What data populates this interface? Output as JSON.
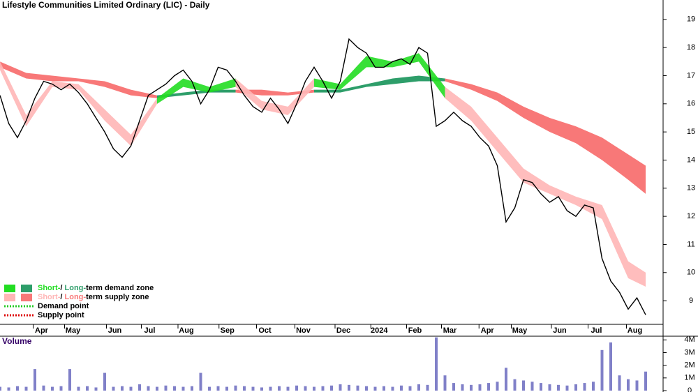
{
  "chart_data": [
    {
      "type": "line",
      "title": "Lifestyle Communities Limited Ordinary (LIC) - Daily",
      "x": [
        0,
        1,
        2,
        3,
        4,
        5,
        6,
        7,
        8,
        9,
        10,
        11,
        12,
        13,
        14,
        15,
        16,
        17,
        18,
        19,
        20,
        21,
        22,
        23,
        24,
        25,
        26,
        27,
        28,
        29,
        30,
        31,
        32,
        33,
        34,
        35,
        36,
        37,
        38,
        39,
        40,
        41,
        42,
        43,
        44,
        45,
        46,
        47,
        48,
        49,
        50,
        51,
        52,
        53,
        54,
        55,
        56,
        57,
        58,
        59,
        60,
        61,
        62,
        63,
        64,
        65,
        66,
        67,
        68,
        69,
        70,
        71,
        72,
        73,
        74
      ],
      "values": [
        16.3,
        15.3,
        14.8,
        15.4,
        16.2,
        16.8,
        16.7,
        16.5,
        16.7,
        16.4,
        16.0,
        15.5,
        15.0,
        14.4,
        14.1,
        14.5,
        15.4,
        16.3,
        16.5,
        16.7,
        17.0,
        17.2,
        16.8,
        16.0,
        16.5,
        17.3,
        17.2,
        16.8,
        16.3,
        15.9,
        15.7,
        16.2,
        15.8,
        15.3,
        16.0,
        16.8,
        17.3,
        16.8,
        16.2,
        16.8,
        18.3,
        18.0,
        17.8,
        17.3,
        17.3,
        17.5,
        17.6,
        17.4,
        18.0,
        17.8,
        15.2,
        15.4,
        15.7,
        15.4,
        15.2,
        14.8,
        14.5,
        13.8,
        11.8,
        12.3,
        13.3,
        13.2,
        12.8,
        12.5,
        12.7,
        12.2,
        12.0,
        12.4,
        12.3,
        10.5,
        9.7,
        9.3,
        8.7,
        9.1,
        8.5
      ],
      "color": "#000000",
      "bands": {
        "x": [
          0,
          3,
          6,
          9,
          12,
          15,
          18,
          21,
          24,
          27,
          30,
          33,
          36,
          39,
          42,
          45,
          48,
          51,
          54,
          57,
          60,
          63,
          66,
          69,
          72,
          74
        ],
        "short_upper": [
          17.5,
          15.6,
          16.8,
          16.7,
          15.8,
          14.9,
          16.2,
          16.9,
          16.6,
          16.9,
          16.1,
          15.9,
          16.9,
          16.7,
          17.7,
          17.5,
          17.8,
          16.6,
          15.9,
          14.8,
          13.7,
          13.1,
          12.7,
          12.4,
          10.4,
          10.0
        ],
        "short_lower": [
          17.2,
          15.2,
          16.6,
          16.5,
          15.4,
          14.5,
          16.0,
          16.6,
          16.4,
          16.6,
          15.8,
          15.6,
          16.6,
          16.5,
          17.3,
          17.3,
          17.5,
          16.2,
          15.4,
          14.3,
          13.2,
          12.8,
          12.4,
          11.9,
          9.8,
          9.5
        ],
        "long_upper": [
          17.5,
          17.1,
          17.0,
          16.9,
          16.8,
          16.5,
          16.3,
          16.4,
          16.5,
          16.5,
          16.5,
          16.4,
          16.5,
          16.5,
          16.7,
          16.9,
          17.0,
          16.9,
          16.7,
          16.4,
          15.9,
          15.5,
          15.2,
          14.8,
          14.2,
          13.8
        ],
        "long_lower": [
          17.3,
          16.9,
          16.8,
          16.8,
          16.6,
          16.3,
          16.2,
          16.3,
          16.4,
          16.4,
          16.3,
          16.3,
          16.4,
          16.4,
          16.6,
          16.7,
          16.8,
          16.8,
          16.5,
          16.1,
          15.5,
          15.0,
          14.6,
          14.0,
          13.3,
          12.8
        ]
      },
      "colors": {
        "short_demand": "#22dd22",
        "long_demand": "#2e9e6a",
        "short_supply": "#ffb6b6",
        "long_supply": "#f87878",
        "demand_point": "#22cc22",
        "supply_point": "#dd0000"
      },
      "xlim": [
        0,
        76
      ],
      "ylim": [
        8.16,
        19.69
      ],
      "yticks": [
        9,
        10,
        11,
        12,
        13,
        14,
        15,
        16,
        17,
        18,
        19
      ],
      "xticks": [
        {
          "value": 3.8,
          "label": "Apr"
        },
        {
          "value": 7.4,
          "label": "May"
        },
        {
          "value": 12.2,
          "label": "Jun"
        },
        {
          "value": 16.2,
          "label": "Jul"
        },
        {
          "value": 20.4,
          "label": "Aug"
        },
        {
          "value": 25.1,
          "label": "Sep"
        },
        {
          "value": 29.4,
          "label": "Oct"
        },
        {
          "value": 33.8,
          "label": "Nov"
        },
        {
          "value": 38.4,
          "label": "Dec"
        },
        {
          "value": 42.5,
          "label": "2024"
        },
        {
          "value": 46.6,
          "label": "Feb"
        },
        {
          "value": 50.6,
          "label": "Mar"
        },
        {
          "value": 54.9,
          "label": "Apr"
        },
        {
          "value": 58.6,
          "label": "May"
        },
        {
          "value": 63.2,
          "label": "Jun"
        },
        {
          "value": 67.4,
          "label": "Jul"
        },
        {
          "value": 71.8,
          "label": "Aug"
        }
      ],
      "legend": [
        {
          "parts": [
            "Short-",
            "/ ",
            "Long-",
            "term demand zone"
          ]
        },
        {
          "parts": [
            "Short-",
            "/ ",
            "Long-",
            "term supply zone"
          ]
        },
        {
          "parts": [
            "Demand point"
          ]
        },
        {
          "parts": [
            "Supply point"
          ]
        }
      ]
    },
    {
      "type": "bar",
      "title": "Volume",
      "values": [
        300000,
        250000,
        350000,
        300000,
        1700000,
        400000,
        300000,
        350000,
        1700000,
        300000,
        350000,
        250000,
        1400000,
        300000,
        350000,
        300000,
        500000,
        350000,
        300000,
        400000,
        350000,
        300000,
        350000,
        1400000,
        300000,
        350000,
        300000,
        400000,
        350000,
        300000,
        250000,
        300000,
        350000,
        300000,
        400000,
        350000,
        300000,
        350000,
        400000,
        500000,
        450000,
        400000,
        350000,
        300000,
        350000,
        300000,
        400000,
        350000,
        500000,
        450000,
        4200000,
        1200000,
        600000,
        500000,
        450000,
        500000,
        600000,
        700000,
        1800000,
        900000,
        800000,
        700000,
        600000,
        500000,
        450000,
        400000,
        500000,
        600000,
        700000,
        3200000,
        3800000,
        1200000,
        900000,
        800000,
        1500000
      ],
      "color": "#8080c8",
      "ylim": [
        0,
        4290000
      ],
      "yticks": [
        0,
        {
          "value": 1000000,
          "label": "1M"
        },
        {
          "value": 2000000,
          "label": "2M"
        },
        {
          "value": 3000000,
          "label": "3M"
        },
        {
          "value": 4000000,
          "label": "4M"
        }
      ]
    }
  ]
}
